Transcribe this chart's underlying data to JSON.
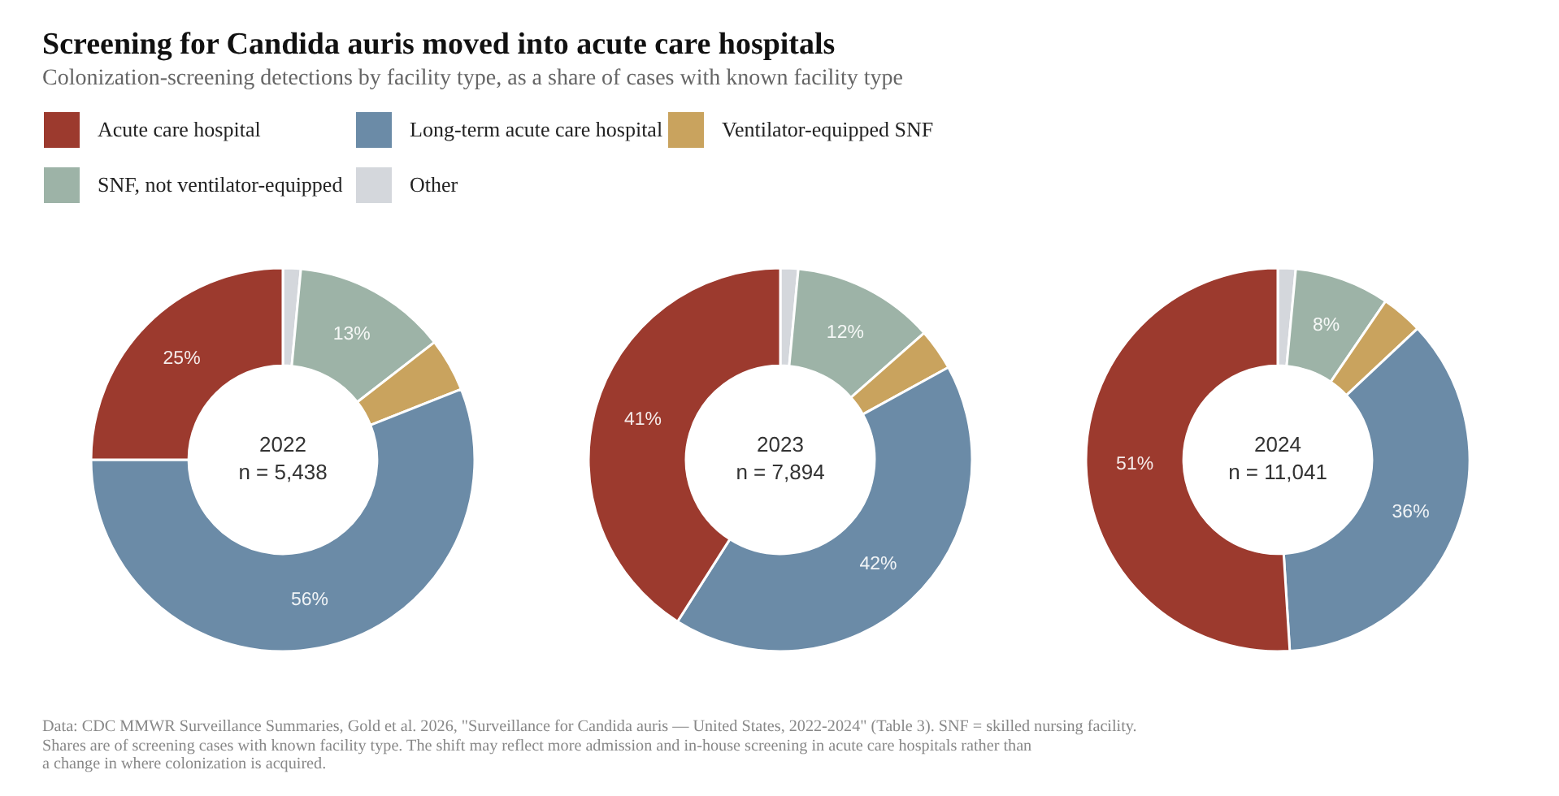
{
  "chart_data": [
    {
      "type": "other",
      "title": "Screening for Candida auris moved into acute care hospitals",
      "subtitle": "Colonization-screening detections by facility type, as a share of cases with known facility type",
      "annotations": [
        "Data: CDC MMWR Surveillance Summaries, Gold et al. 2026, \"Surveillance for Candida auris — United States, 2022-2024\" (Table 3). SNF = skilled nursing facility.",
        "Shares are of screening cases with known facility type. The shift may reflect more admission and in-house screening in acute care hospitals rather than a change in where colonization is acquired."
      ]
    },
    {
      "type": "donut",
      "categories": [
        "Acute care hospital",
        "Long-term acute care hospital",
        "Ventilator-equipped SNF",
        "SNF, not ventilator-equipped",
        "Other"
      ],
      "values": [
        25,
        56,
        4.5,
        13,
        1.5
      ],
      "colors": [
        "#9c3a2e",
        "#6b8ba7",
        "#c9a35e",
        "#9db3a7",
        "#d4d7dc"
      ],
      "value_labels": [
        "25%",
        "56%",
        null,
        "13%",
        null
      ],
      "legend": "top",
      "annotations": [
        "2022",
        "n = 5,438"
      ]
    },
    {
      "type": "donut",
      "categories": [
        null,
        null,
        null,
        null,
        null
      ],
      "values": [
        41,
        42,
        3.5,
        12,
        1.5
      ],
      "colors": [
        "#9c3a2e",
        "#6b8ba7",
        "#c9a35e",
        "#9db3a7",
        "#d4d7dc"
      ],
      "value_labels": [
        "41%",
        "42%",
        null,
        "12%",
        null
      ],
      "annotations": [
        "2023",
        "n = 7,894"
      ]
    },
    {
      "type": "donut",
      "categories": [
        null,
        null,
        null,
        null,
        null
      ],
      "values": [
        51,
        36,
        3.5,
        8,
        1.5
      ],
      "colors": [
        "#9c3a2e",
        "#6b8ba7",
        "#c9a35e",
        "#9db3a7",
        "#d4d7dc"
      ],
      "value_labels": [
        "51%",
        "36%",
        null,
        "8%",
        null
      ],
      "annotations": [
        "2024",
        "n = 11,041"
      ]
    }
  ]
}
